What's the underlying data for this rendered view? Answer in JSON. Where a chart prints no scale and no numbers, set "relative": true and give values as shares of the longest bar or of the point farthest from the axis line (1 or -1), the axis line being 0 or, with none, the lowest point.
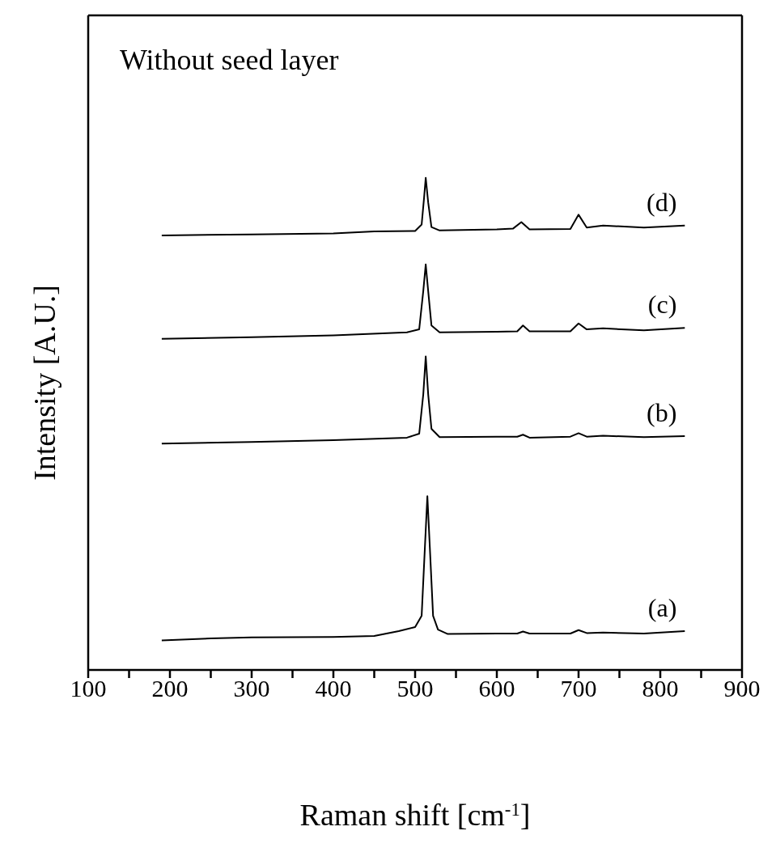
{
  "chart_data": {
    "type": "line",
    "title": "Without seed layer",
    "xlabel": "Raman shift [cm$^{-1}$]",
    "ylabel": "Intensity [A.U.]",
    "relative": true,
    "xlim": [
      100,
      900
    ],
    "xticks": [
      100,
      {
        "value": 150,
        "label": null
      },
      200,
      {
        "value": 250,
        "label": null
      },
      300,
      {
        "value": 350,
        "label": null
      },
      400,
      {
        "value": 450,
        "label": null
      },
      500,
      {
        "value": 550,
        "label": null
      },
      600,
      {
        "value": 650,
        "label": null
      },
      700,
      {
        "value": 750,
        "label": null
      },
      800,
      {
        "value": 850,
        "label": null
      },
      900
    ],
    "marker": "none",
    "line_style": "solid",
    "series": [
      {
        "name": "(a)",
        "color": "#000000",
        "x": [
          190,
          250,
          300,
          400,
          450,
          480,
          500,
          508,
          512,
          515,
          518,
          522,
          528,
          540,
          600,
          625,
          632,
          640,
          690,
          700,
          710,
          730,
          780,
          830
        ],
        "values": [
          0.06,
          0.064,
          0.066,
          0.067,
          0.069,
          0.079,
          0.087,
          0.11,
          0.25,
          0.353,
          0.25,
          0.11,
          0.082,
          0.073,
          0.074,
          0.074,
          0.078,
          0.074,
          0.074,
          0.081,
          0.075,
          0.076,
          0.074,
          0.079
        ]
      },
      {
        "name": "(b)",
        "color": "#000000",
        "x": [
          190,
          300,
          400,
          490,
          505,
          510,
          513,
          516,
          520,
          530,
          600,
          625,
          632,
          640,
          690,
          700,
          710,
          730,
          780,
          830
        ],
        "values": [
          0.46,
          0.463,
          0.467,
          0.472,
          0.48,
          0.56,
          0.637,
          0.56,
          0.49,
          0.473,
          0.474,
          0.474,
          0.478,
          0.472,
          0.474,
          0.481,
          0.474,
          0.476,
          0.473,
          0.475
        ]
      },
      {
        "name": "(c)",
        "color": "#000000",
        "x": [
          190,
          300,
          400,
          490,
          505,
          510,
          513,
          516,
          520,
          530,
          600,
          625,
          632,
          640,
          690,
          700,
          710,
          730,
          780,
          830
        ],
        "values": [
          0.673,
          0.676,
          0.68,
          0.686,
          0.692,
          0.77,
          0.824,
          0.77,
          0.7,
          0.686,
          0.687,
          0.688,
          0.7,
          0.688,
          0.688,
          0.704,
          0.692,
          0.694,
          0.69,
          0.695
        ]
      },
      {
        "name": "(d)",
        "color": "#000000",
        "x": [
          190,
          300,
          400,
          450,
          500,
          508,
          511,
          513,
          516,
          520,
          530,
          600,
          620,
          630,
          640,
          690,
          700,
          710,
          730,
          780,
          830
        ],
        "values": [
          0.883,
          0.885,
          0.887,
          0.891,
          0.892,
          0.905,
          0.96,
          1.0,
          0.95,
          0.9,
          0.893,
          0.895,
          0.897,
          0.91,
          0.895,
          0.896,
          0.925,
          0.899,
          0.903,
          0.899,
          0.903
        ]
      }
    ]
  }
}
